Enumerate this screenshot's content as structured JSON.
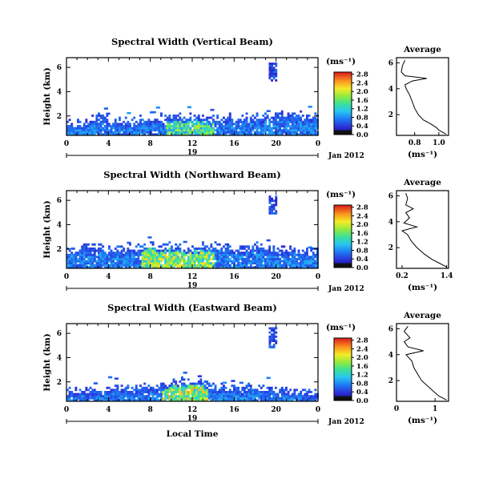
{
  "chart_data": [
    {
      "type": "heatmap",
      "title": "Spectral Width (Vertical Beam)",
      "ylabel": "Height (km)",
      "x_ticks": [
        "0",
        "4",
        "8",
        "12",
        "16",
        "20",
        "0"
      ],
      "y_ticks": [
        "2",
        "4",
        "6"
      ],
      "xlim": [
        0,
        24
      ],
      "ylim": [
        0.4,
        6.8
      ],
      "date_label": "19",
      "month_label": "Jan 2012",
      "colorbar": {
        "label": "(ms⁻¹)",
        "ticks": [
          "0.0",
          "0.4",
          "0.8",
          "1.2",
          "1.6",
          "2.0",
          "2.4",
          "2.8"
        ],
        "max": 2.9
      },
      "echo_profile": [
        {
          "t": 0.0,
          "top": 1.3
        },
        {
          "t": 1.5,
          "top": 1.4
        },
        {
          "t": 3.0,
          "top": 1.8
        },
        {
          "t": 4.0,
          "top": 1.5
        },
        {
          "t": 6.0,
          "top": 1.4
        },
        {
          "t": 8.0,
          "top": 1.7
        },
        {
          "t": 10.0,
          "top": 1.8
        },
        {
          "t": 12.0,
          "top": 1.9
        },
        {
          "t": 14.0,
          "top": 1.6
        },
        {
          "t": 16.0,
          "top": 1.7
        },
        {
          "t": 18.0,
          "top": 1.8
        },
        {
          "t": 20.0,
          "top": 1.9
        },
        {
          "t": 22.0,
          "top": 1.9
        },
        {
          "t": 24.0,
          "top": 1.8
        }
      ],
      "hot_zones": [
        {
          "t0": 9.5,
          "t1": 14.0,
          "value": 1.9
        }
      ],
      "upper_echo": {
        "t0": 19.3,
        "t1": 20.0,
        "h0": 5.0,
        "h1": 6.4
      },
      "average": {
        "title": "Average",
        "xlabel": "(ms⁻¹)",
        "x_ticks": [
          "0.8",
          "1.0"
        ],
        "xlim": [
          0.65,
          1.08
        ],
        "y_ticks": [
          "2",
          "4",
          "6"
        ],
        "ylim": [
          0.4,
          6.4
        ],
        "profile": [
          [
            1.06,
            0.5
          ],
          [
            1.0,
            0.8
          ],
          [
            0.98,
            1.0
          ],
          [
            0.93,
            1.3
          ],
          [
            0.87,
            1.6
          ],
          [
            0.83,
            2.0
          ],
          [
            0.8,
            2.5
          ],
          [
            0.78,
            3.0
          ],
          [
            0.76,
            3.5
          ],
          [
            0.73,
            4.0
          ],
          [
            0.72,
            4.3
          ],
          [
            0.78,
            4.6
          ],
          [
            0.9,
            4.8
          ],
          [
            0.72,
            5.0
          ],
          [
            0.69,
            5.3
          ],
          [
            0.7,
            5.8
          ],
          [
            0.72,
            6.2
          ]
        ]
      }
    },
    {
      "type": "heatmap",
      "title": "Spectral Width (Northward Beam)",
      "ylabel": "Height (km)",
      "x_ticks": [
        "0",
        "4",
        "8",
        "12",
        "16",
        "20",
        "0"
      ],
      "y_ticks": [
        "2",
        "4",
        "6"
      ],
      "xlim": [
        0,
        24
      ],
      "ylim": [
        0.4,
        6.8
      ],
      "date_label": "19",
      "month_label": "Jan 2012",
      "colorbar": {
        "label": "(ms⁻¹)",
        "ticks": [
          "0.0",
          "0.4",
          "0.8",
          "1.2",
          "1.6",
          "2.0",
          "2.4",
          "2.8"
        ],
        "max": 2.9
      },
      "echo_profile": [
        {
          "t": 0.0,
          "top": 1.8
        },
        {
          "t": 2.0,
          "top": 2.2
        },
        {
          "t": 4.0,
          "top": 1.9
        },
        {
          "t": 6.0,
          "top": 1.9
        },
        {
          "t": 8.0,
          "top": 2.2
        },
        {
          "t": 10.0,
          "top": 2.1
        },
        {
          "t": 12.0,
          "top": 2.0
        },
        {
          "t": 14.0,
          "top": 2.2
        },
        {
          "t": 16.0,
          "top": 1.9
        },
        {
          "t": 18.0,
          "top": 2.1
        },
        {
          "t": 20.0,
          "top": 1.9
        },
        {
          "t": 22.0,
          "top": 1.8
        },
        {
          "t": 24.0,
          "top": 1.6
        }
      ],
      "hot_zones": [
        {
          "t0": 7.0,
          "t1": 14.0,
          "value": 2.2
        }
      ],
      "upper_echo": {
        "t0": 19.3,
        "t1": 20.0,
        "h0": 4.9,
        "h1": 6.4
      },
      "average": {
        "title": "Average",
        "xlabel": "(ms⁻¹)",
        "x_ticks": [
          "0.2",
          "1.4"
        ],
        "xlim": [
          0.05,
          1.45
        ],
        "y_ticks": [
          "2",
          "4",
          "6"
        ],
        "ylim": [
          0.4,
          6.4
        ],
        "profile": [
          [
            1.4,
            0.5
          ],
          [
            1.2,
            0.8
          ],
          [
            1.0,
            1.1
          ],
          [
            0.8,
            1.5
          ],
          [
            0.6,
            2.0
          ],
          [
            0.45,
            2.5
          ],
          [
            0.35,
            3.0
          ],
          [
            0.2,
            3.3
          ],
          [
            0.6,
            3.6
          ],
          [
            0.25,
            3.9
          ],
          [
            0.4,
            4.3
          ],
          [
            0.3,
            4.7
          ],
          [
            0.5,
            5.0
          ],
          [
            0.3,
            5.3
          ],
          [
            0.35,
            5.8
          ],
          [
            0.3,
            6.2
          ]
        ]
      }
    },
    {
      "type": "heatmap",
      "title": "Spectral Width (Eastward Beam)",
      "ylabel": "Height (km)",
      "xlabel": "Local Time",
      "x_ticks": [
        "0",
        "4",
        "8",
        "12",
        "16",
        "20",
        "0"
      ],
      "y_ticks": [
        "2",
        "4",
        "6"
      ],
      "xlim": [
        0,
        24
      ],
      "ylim": [
        0.4,
        6.8
      ],
      "date_label": "19",
      "month_label": "Jan 2012",
      "colorbar": {
        "label": "(ms⁻¹)",
        "ticks": [
          "0.0",
          "0.4",
          "0.8",
          "1.2",
          "1.6",
          "2.0",
          "2.4",
          "2.8"
        ],
        "max": 2.9
      },
      "echo_profile": [
        {
          "t": 0.0,
          "top": 1.2
        },
        {
          "t": 2.0,
          "top": 1.1
        },
        {
          "t": 4.0,
          "top": 1.4
        },
        {
          "t": 6.0,
          "top": 1.3
        },
        {
          "t": 8.0,
          "top": 1.6
        },
        {
          "t": 10.0,
          "top": 1.8
        },
        {
          "t": 12.0,
          "top": 2.0
        },
        {
          "t": 14.0,
          "top": 1.5
        },
        {
          "t": 16.0,
          "top": 1.3
        },
        {
          "t": 18.0,
          "top": 1.6
        },
        {
          "t": 20.0,
          "top": 1.3
        },
        {
          "t": 22.0,
          "top": 1.1
        },
        {
          "t": 24.0,
          "top": 1.0
        }
      ],
      "hot_zones": [
        {
          "t0": 9.0,
          "t1": 13.5,
          "value": 2.4
        }
      ],
      "upper_echo": {
        "t0": 19.3,
        "t1": 20.0,
        "h0": 4.8,
        "h1": 6.5
      },
      "average": {
        "title": "Average",
        "xlabel": "(ms⁻¹)",
        "x_ticks": [
          "0",
          "1"
        ],
        "xlim": [
          0,
          1.35
        ],
        "y_ticks": [
          "2",
          "4",
          "6"
        ],
        "ylim": [
          0.4,
          6.4
        ],
        "profile": [
          [
            1.3,
            0.5
          ],
          [
            1.1,
            0.8
          ],
          [
            0.95,
            1.2
          ],
          [
            0.8,
            1.6
          ],
          [
            0.65,
            2.0
          ],
          [
            0.55,
            2.5
          ],
          [
            0.45,
            3.0
          ],
          [
            0.4,
            3.5
          ],
          [
            0.25,
            4.0
          ],
          [
            0.7,
            4.3
          ],
          [
            0.3,
            4.6
          ],
          [
            0.2,
            5.0
          ],
          [
            0.35,
            5.3
          ],
          [
            0.2,
            5.8
          ],
          [
            0.3,
            6.2
          ]
        ]
      }
    }
  ]
}
